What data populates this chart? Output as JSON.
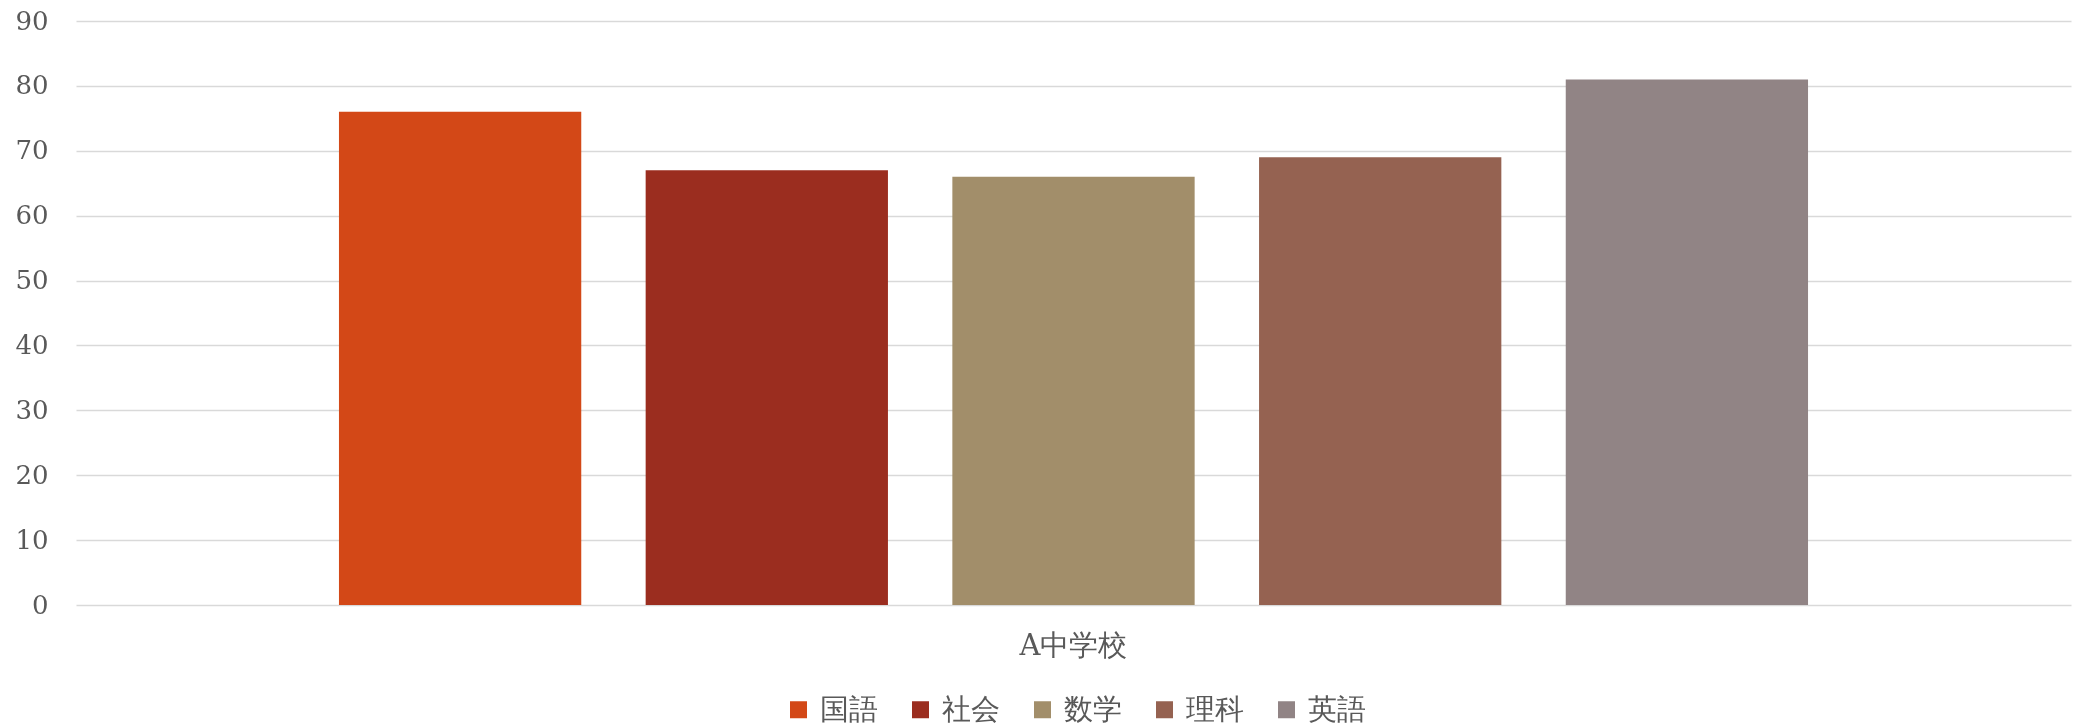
{
  "chart_data": {
    "type": "bar",
    "categories": [
      "A中学校"
    ],
    "series": [
      {
        "name": "国語",
        "color": "#d34817",
        "values": [
          76
        ]
      },
      {
        "name": "社会",
        "color": "#9b2d1f",
        "values": [
          67
        ]
      },
      {
        "name": "数学",
        "color": "#a28e6a",
        "values": [
          66
        ]
      },
      {
        "name": "理科",
        "color": "#956251",
        "values": [
          69
        ]
      },
      {
        "name": "英語",
        "color": "#918485",
        "values": [
          81
        ]
      }
    ],
    "ylim": [
      0,
      90
    ],
    "yticks": [
      0,
      10,
      20,
      30,
      40,
      50,
      60,
      70,
      80,
      90
    ],
    "grid": "y",
    "legend": "bottom"
  }
}
